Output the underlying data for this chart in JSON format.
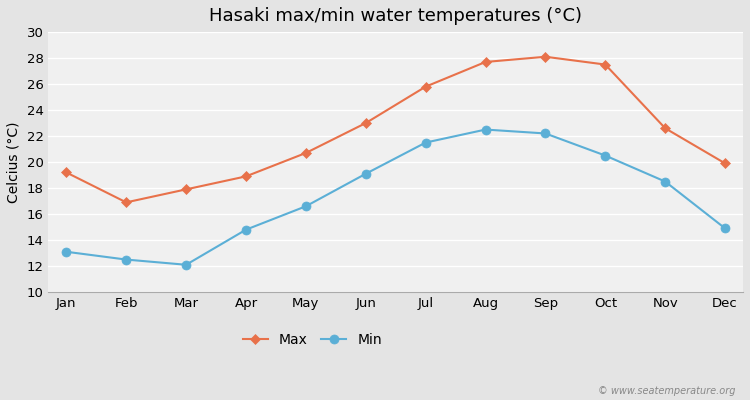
{
  "title": "Hasaki max/min water temperatures (°C)",
  "ylabel": "Celcius (°C)",
  "months": [
    "Jan",
    "Feb",
    "Mar",
    "Apr",
    "May",
    "Jun",
    "Jul",
    "Aug",
    "Sep",
    "Oct",
    "Nov",
    "Dec"
  ],
  "max_values": [
    19.2,
    16.9,
    17.9,
    18.9,
    20.7,
    23.0,
    25.8,
    27.7,
    28.1,
    27.5,
    22.6,
    19.9
  ],
  "min_values": [
    13.1,
    12.5,
    12.1,
    14.8,
    16.6,
    19.1,
    21.5,
    22.5,
    22.2,
    20.5,
    18.5,
    14.9
  ],
  "max_color": "#e8714a",
  "min_color": "#5bafd6",
  "fig_bg_color": "#e4e4e4",
  "plot_bg_color": "#f0f0f0",
  "grid_color": "#ffffff",
  "ylim": [
    10,
    30
  ],
  "yticks": [
    10,
    12,
    14,
    16,
    18,
    20,
    22,
    24,
    26,
    28,
    30
  ],
  "legend_labels": [
    "Max",
    "Min"
  ],
  "watermark": "© www.seatemperature.org",
  "title_fontsize": 13,
  "axis_label_fontsize": 10,
  "tick_fontsize": 9.5
}
